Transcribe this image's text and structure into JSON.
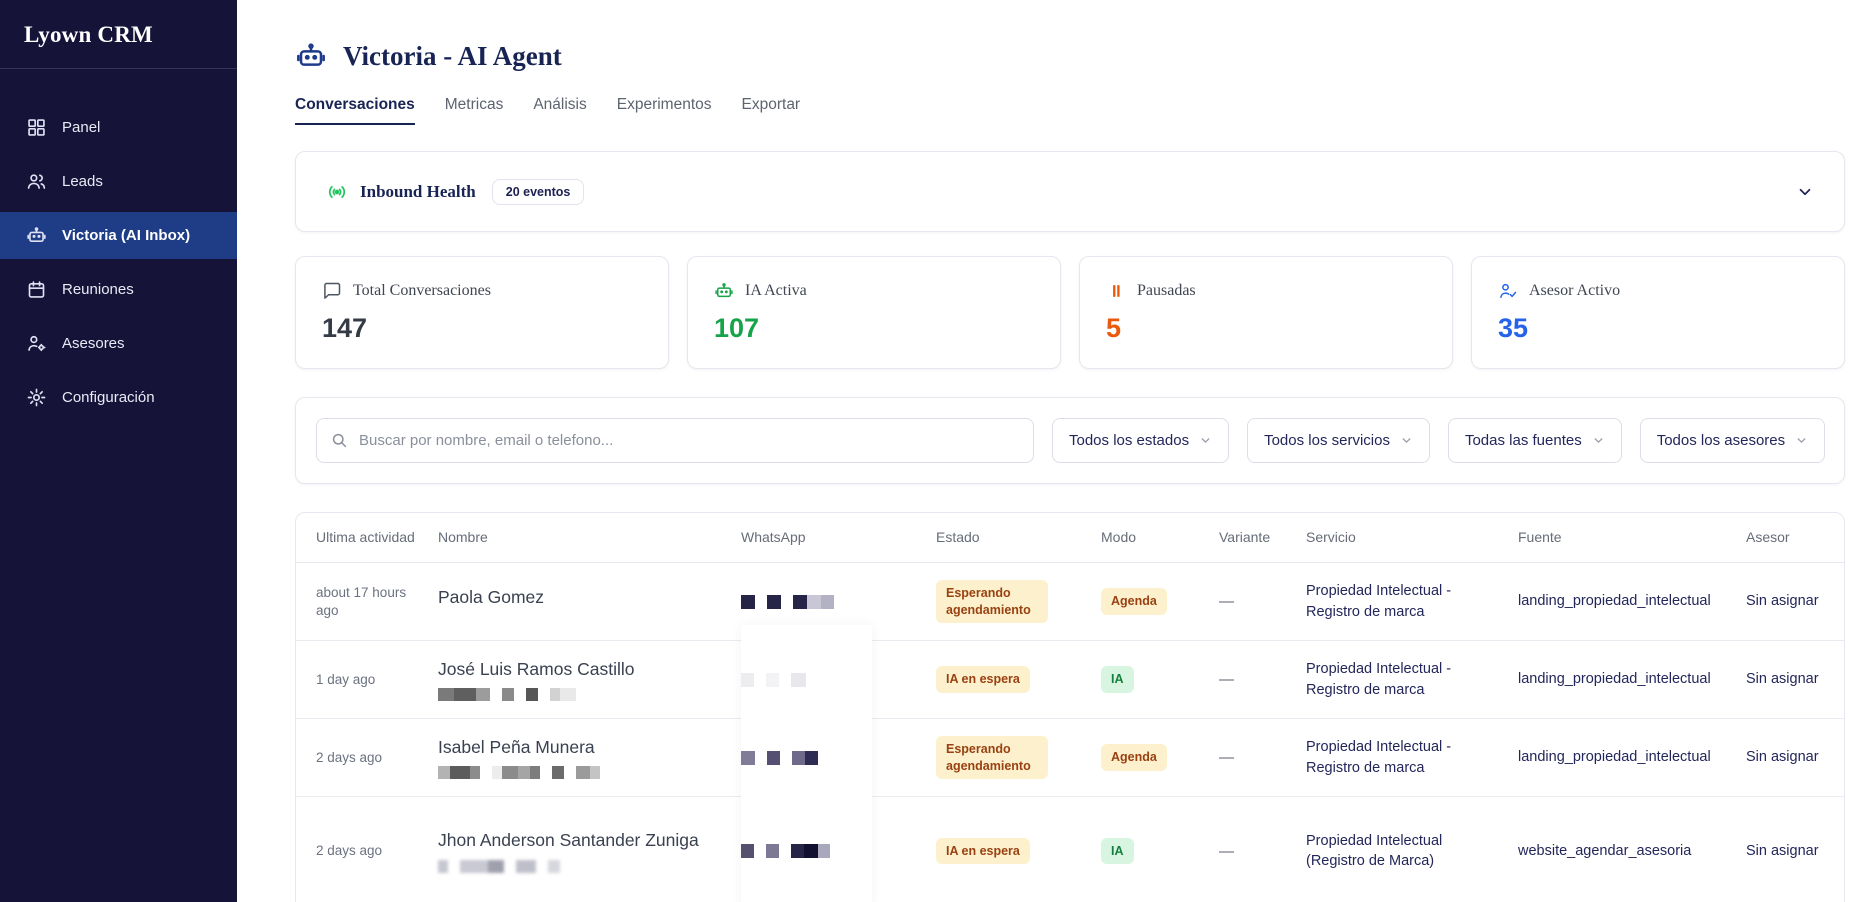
{
  "app": {
    "title": "Lyown CRM"
  },
  "colors": {
    "sidebar_bg": "#161339",
    "sidebar_active": "#1e3d86",
    "navy": "#1e2a5c",
    "green": "#16a34a",
    "orange": "#ea580c",
    "blue": "#2563eb",
    "badge_yellow_bg": "#fcf1cc",
    "badge_yellow_text": "#9a4112",
    "badge_green_bg": "#d8f5e1",
    "badge_green_text": "#15803d"
  },
  "sidebar": {
    "items": [
      {
        "label": "Panel",
        "icon": "dashboard-icon",
        "active": false
      },
      {
        "label": "Leads",
        "icon": "users-icon",
        "active": false
      },
      {
        "label": "Victoria (AI Inbox)",
        "icon": "robot-icon",
        "active": true
      },
      {
        "label": "Reuniones",
        "icon": "calendar-icon",
        "active": false
      },
      {
        "label": "Asesores",
        "icon": "user-gear-icon",
        "active": false
      },
      {
        "label": "Configuración",
        "icon": "gear-icon",
        "active": false
      }
    ]
  },
  "header": {
    "title": "Victoria - AI Agent",
    "tabs": [
      {
        "label": "Conversaciones",
        "active": true
      },
      {
        "label": "Metricas",
        "active": false
      },
      {
        "label": "Análisis",
        "active": false
      },
      {
        "label": "Experimentos",
        "active": false
      },
      {
        "label": "Exportar",
        "active": false
      }
    ]
  },
  "health": {
    "title": "Inbound Health",
    "badge": "20 eventos"
  },
  "stats": [
    {
      "label": "Total Conversaciones",
      "value": "147",
      "color": "#343b46",
      "icon": "chat-icon"
    },
    {
      "label": "IA Activa",
      "value": "107",
      "color": "#16a34a",
      "icon": "robot-icon"
    },
    {
      "label": "Pausadas",
      "value": "5",
      "color": "#ea580c",
      "icon": "pause-icon"
    },
    {
      "label": "Asesor Activo",
      "value": "35",
      "color": "#2563eb",
      "icon": "user-check-icon"
    }
  ],
  "filters": {
    "search_placeholder": "Buscar por nombre, email o telefono...",
    "dropdowns": [
      "Todos los estados",
      "Todos los servicios",
      "Todas las fuentes",
      "Todos los asesores"
    ]
  },
  "table": {
    "columns": [
      "Ultima actividad",
      "Nombre",
      "WhatsApp",
      "Estado",
      "Modo",
      "Variante",
      "Servicio",
      "Fuente",
      "Asesor"
    ],
    "rows": [
      {
        "time": "about 17 hours ago",
        "name": "Paola Gomez",
        "name_blocks": [],
        "blocks_blur": false,
        "wa_blocks": [
          [
            [
              14,
              "#262547"
            ]
          ],
          [
            [
              14,
              "#262547"
            ]
          ],
          [
            [
              14,
              "#262547"
            ],
            [
              14,
              "#c9c7d6"
            ],
            [
              13,
              "#b3b1c4"
            ]
          ]
        ],
        "estado": {
          "label": "Esperando agendamiento",
          "type": "yellow"
        },
        "modo": {
          "label": "Agenda",
          "type": "yellow"
        },
        "variante": "—",
        "servicio": "Propiedad Intelectual - Registro de marca",
        "fuente": "landing_propiedad_intelectual",
        "asesor": "Sin asignar"
      },
      {
        "time": "1 day ago",
        "name": "José Luis Ramos Castillo",
        "name_blocks": [
          [
            [
              16,
              "#7a7a7a"
            ],
            [
              22,
              "#5f5f5f"
            ],
            [
              14,
              "#9c9c9c"
            ]
          ],
          [
            [
              12,
              "#8a8a8a"
            ]
          ],
          [
            [
              12,
              "#565656"
            ]
          ],
          [
            [
              10,
              "#d2d2d2"
            ],
            [
              16,
              "#e9e9e9"
            ]
          ]
        ],
        "blocks_blur": false,
        "wa_blocks": [
          [
            [
              13,
              "#ededf0"
            ]
          ],
          [
            [
              13,
              "#f3f3f5"
            ]
          ],
          [
            [
              15,
              "#e8e8ec"
            ]
          ]
        ],
        "estado": {
          "label": "IA en espera",
          "type": "yellow"
        },
        "modo": {
          "label": "IA",
          "type": "green"
        },
        "variante": "—",
        "servicio": "Propiedad Intelectual - Registro de marca",
        "fuente": "landing_propiedad_intelectual",
        "asesor": "Sin asignar"
      },
      {
        "time": "2 days ago",
        "name": "Isabel Peña Munera",
        "name_blocks": [
          [
            [
              12,
              "#b3b3b3"
            ],
            [
              20,
              "#5c5c5c"
            ],
            [
              10,
              "#8c8c8c"
            ]
          ],
          [
            [
              10,
              "#ececec"
            ],
            [
              16,
              "#8b8b8b"
            ],
            [
              12,
              "#a5a5a5"
            ],
            [
              10,
              "#7d7d7d"
            ]
          ],
          [
            [
              12,
              "#6b6b6b"
            ]
          ],
          [
            [
              14,
              "#9b9b9b"
            ],
            [
              10,
              "#c4c4c4"
            ]
          ]
        ],
        "blocks_blur": false,
        "wa_blocks": [
          [
            [
              14,
              "#807b97"
            ]
          ],
          [
            [
              13,
              "#555071"
            ]
          ],
          [
            [
              13,
              "#6f6a8a"
            ],
            [
              13,
              "#2e2c52"
            ]
          ]
        ],
        "estado": {
          "label": "Esperando agendamiento",
          "type": "yellow"
        },
        "modo": {
          "label": "Agenda",
          "type": "yellow"
        },
        "variante": "—",
        "servicio": "Propiedad Intelectual - Registro de marca",
        "fuente": "landing_propiedad_intelectual",
        "asesor": "Sin asignar"
      },
      {
        "time": "2 days ago",
        "name": "Jhon Anderson Santander Zuniga",
        "name_blocks": [
          [
            [
              10,
              "#bdbdc9"
            ]
          ],
          [
            [
              28,
              "#c0c0cc"
            ],
            [
              16,
              "#8f8f9f"
            ]
          ],
          [
            [
              20,
              "#b5b5c2"
            ]
          ],
          [
            [
              12,
              "#cfcfd8"
            ]
          ]
        ],
        "blocks_blur": true,
        "wa_blocks": [
          [
            [
              13,
              "#55506e"
            ]
          ],
          [
            [
              13,
              "#7d7894"
            ]
          ],
          [
            [
              13,
              "#262547"
            ],
            [
              14,
              "#11102e"
            ],
            [
              12,
              "#aaa8bc"
            ]
          ]
        ],
        "estado": {
          "label": "IA en espera",
          "type": "yellow"
        },
        "modo": {
          "label": "IA",
          "type": "green"
        },
        "variante": "—",
        "servicio": "Propiedad Intelectual (Registro de Marca)",
        "fuente": "website_agendar_asesoria",
        "asesor": "Sin asignar"
      }
    ]
  }
}
